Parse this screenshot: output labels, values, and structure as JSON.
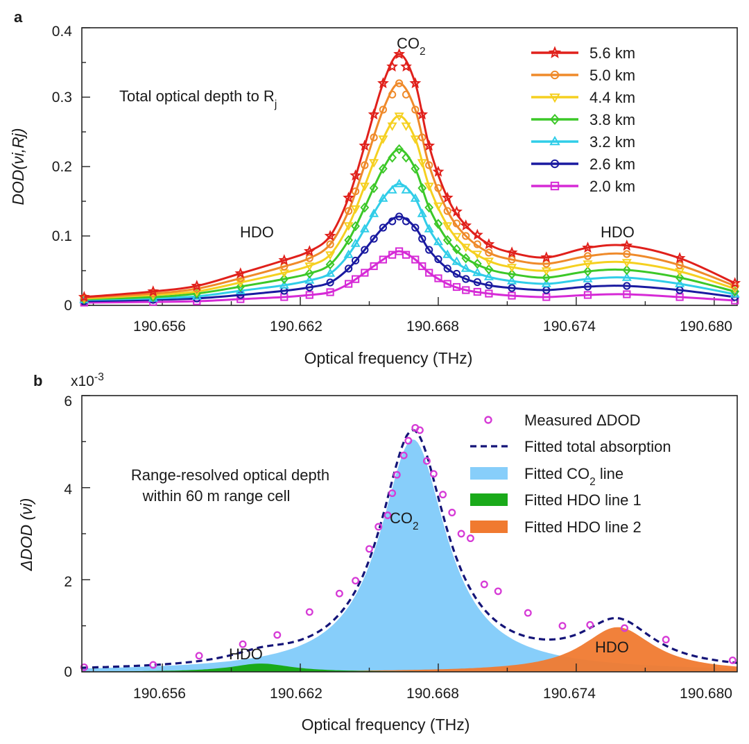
{
  "panel_a": {
    "panel_label": "a",
    "xlabel": "Optical frequency (THz)",
    "ylabel": "DOD(νi,Rj)",
    "x_ticks": [
      "190.656",
      "190.662",
      "190.668",
      "190.674",
      "190.680"
    ],
    "y_ticks": [
      "0",
      "0.1",
      "0.2",
      "0.3",
      "0.4"
    ],
    "annotation_total": "Total optical depth to Rj",
    "label_co2": "CO2",
    "label_hdo_left": "HDO",
    "label_hdo_right": "HDO"
  },
  "panel_b": {
    "panel_label": "b",
    "xlabel": "Optical frequency (THz)",
    "ylabel": "ΔDOD (νi)",
    "y_multiplier": "x10-3",
    "x_ticks": [
      "190.656",
      "190.662",
      "190.668",
      "190.674",
      "190.680"
    ],
    "y_ticks": [
      "0",
      "2",
      "4",
      "6"
    ],
    "annotation_line1": "Range-resolved optical depth",
    "annotation_line2": "within 60 m range cell",
    "label_co2": "CO2",
    "label_hdo_left": "HDO",
    "label_hdo_right": "HDO",
    "legend": {
      "measured": "Measured ΔDOD",
      "fitted_total": "Fitted total absorption",
      "fitted_co2": "Fitted CO2 line",
      "fitted_hdo1": "Fitted HDO line 1",
      "fitted_hdo2": "Fitted HDO line 2"
    }
  },
  "colors": {
    "s56": "#e0201b",
    "s50": "#ef8a2a",
    "s44": "#f5d020",
    "s38": "#3cc828",
    "s32": "#30cde8",
    "s26": "#1a1aa0",
    "s20": "#d62ad6",
    "co2_fill": "#87cefa",
    "hdo1_fill": "#1aaa1a",
    "hdo2_fill": "#f07a30",
    "fitted_total": "#141478",
    "measured": "#d63ad6"
  },
  "chart_data": [
    {
      "type": "line",
      "x_range": [
        190.6525,
        190.681
      ],
      "ylim": [
        0,
        0.4
      ],
      "x": [
        190.6526,
        190.6556,
        190.6575,
        190.6594,
        190.6613,
        190.6624,
        190.6633,
        190.6641,
        190.6648,
        190.6656,
        190.6663,
        190.667,
        190.6676,
        190.6684,
        190.6692,
        190.6702,
        190.6712,
        190.6727,
        190.6745,
        190.6762,
        190.6785,
        190.6809
      ],
      "series": [
        {
          "name": "5.6 km",
          "marker": "star",
          "color": "#e0201b",
          "values": [
            0.012,
            0.02,
            0.028,
            0.046,
            0.065,
            0.078,
            0.1,
            0.155,
            0.23,
            0.32,
            0.362,
            0.32,
            0.23,
            0.155,
            0.115,
            0.088,
            0.076,
            0.069,
            0.083,
            0.086,
            0.068,
            0.032
          ]
        },
        {
          "name": "5.0 km",
          "marker": "circle",
          "color": "#ef8a2a",
          "values": [
            0.011,
            0.017,
            0.024,
            0.039,
            0.056,
            0.068,
            0.088,
            0.136,
            0.202,
            0.282,
            0.32,
            0.282,
            0.202,
            0.136,
            0.1,
            0.076,
            0.066,
            0.06,
            0.071,
            0.074,
            0.058,
            0.028
          ]
        },
        {
          "name": "4.4 km",
          "marker": "triangle-down",
          "color": "#f5d020",
          "values": [
            0.01,
            0.015,
            0.02,
            0.033,
            0.047,
            0.057,
            0.073,
            0.115,
            0.172,
            0.24,
            0.273,
            0.24,
            0.172,
            0.115,
            0.084,
            0.064,
            0.055,
            0.05,
            0.06,
            0.062,
            0.049,
            0.024
          ]
        },
        {
          "name": "3.8 km",
          "marker": "diamond",
          "color": "#3cc828",
          "values": [
            0.009,
            0.012,
            0.017,
            0.027,
            0.038,
            0.046,
            0.059,
            0.094,
            0.141,
            0.197,
            0.225,
            0.197,
            0.141,
            0.094,
            0.068,
            0.052,
            0.045,
            0.04,
            0.049,
            0.051,
            0.04,
            0.02
          ]
        },
        {
          "name": "3.2 km",
          "marker": "triangle-up",
          "color": "#30cde8",
          "values": [
            0.008,
            0.01,
            0.013,
            0.021,
            0.029,
            0.036,
            0.046,
            0.073,
            0.11,
            0.154,
            0.175,
            0.154,
            0.11,
            0.073,
            0.053,
            0.041,
            0.035,
            0.031,
            0.038,
            0.04,
            0.031,
            0.016
          ]
        },
        {
          "name": "2.6 km",
          "marker": "circle",
          "color": "#1a1aa0",
          "values": [
            0.006,
            0.008,
            0.01,
            0.015,
            0.021,
            0.026,
            0.033,
            0.053,
            0.08,
            0.112,
            0.128,
            0.112,
            0.08,
            0.053,
            0.038,
            0.029,
            0.025,
            0.022,
            0.027,
            0.028,
            0.022,
            0.012
          ]
        },
        {
          "name": "2.0 km",
          "marker": "square",
          "color": "#d62ad6",
          "values": [
            0.004,
            0.005,
            0.006,
            0.009,
            0.012,
            0.015,
            0.019,
            0.031,
            0.047,
            0.066,
            0.078,
            0.066,
            0.047,
            0.031,
            0.022,
            0.017,
            0.014,
            0.012,
            0.015,
            0.016,
            0.012,
            0.007
          ]
        }
      ]
    },
    {
      "type": "area",
      "x_range": [
        190.6525,
        190.681
      ],
      "ylim": [
        0,
        6
      ],
      "y_scale": "x10-3",
      "measured": {
        "name": "Measured ΔDOD",
        "x": [
          190.6526,
          190.6556,
          190.6576,
          190.6595,
          190.661,
          190.6624,
          190.6637,
          190.6644,
          190.665,
          190.6654,
          190.6658,
          190.666,
          190.6662,
          190.6665,
          190.6667,
          190.667,
          190.6672,
          190.6675,
          190.6678,
          190.6682,
          190.6686,
          190.669,
          190.6694,
          190.67,
          190.6706,
          190.6719,
          190.6734,
          190.6746,
          190.6761,
          190.6779,
          190.6808
        ],
        "values": [
          0.1,
          0.15,
          0.35,
          0.6,
          0.8,
          1.3,
          1.7,
          1.98,
          2.67,
          3.15,
          3.4,
          3.88,
          4.28,
          4.7,
          5.02,
          5.3,
          5.25,
          4.58,
          4.3,
          3.85,
          3.46,
          3.0,
          2.9,
          1.9,
          1.75,
          1.28,
          1.0,
          1.02,
          0.95,
          0.7,
          0.25
        ]
      },
      "fitted_total": {
        "name": "Fitted total absorption",
        "style": "dashed",
        "x0": 190.6669,
        "peak": 5.2,
        "hwhm": 0.00175
      },
      "fitted_co2": {
        "name": "Fitted CO2 line",
        "x0": 190.6669,
        "peak": 5.05,
        "hwhm": 0.00175
      },
      "fitted_hdo1": {
        "name": "Fitted HDO line 1",
        "x0": 190.6603,
        "peak": 0.18,
        "hwhm": 0.0016
      },
      "fitted_hdo2": {
        "name": "Fitted HDO line 2",
        "x0": 190.6758,
        "peak": 0.97,
        "hwhm": 0.0019
      },
      "peak_labels": [
        "CO2",
        "HDO",
        "HDO"
      ]
    }
  ]
}
